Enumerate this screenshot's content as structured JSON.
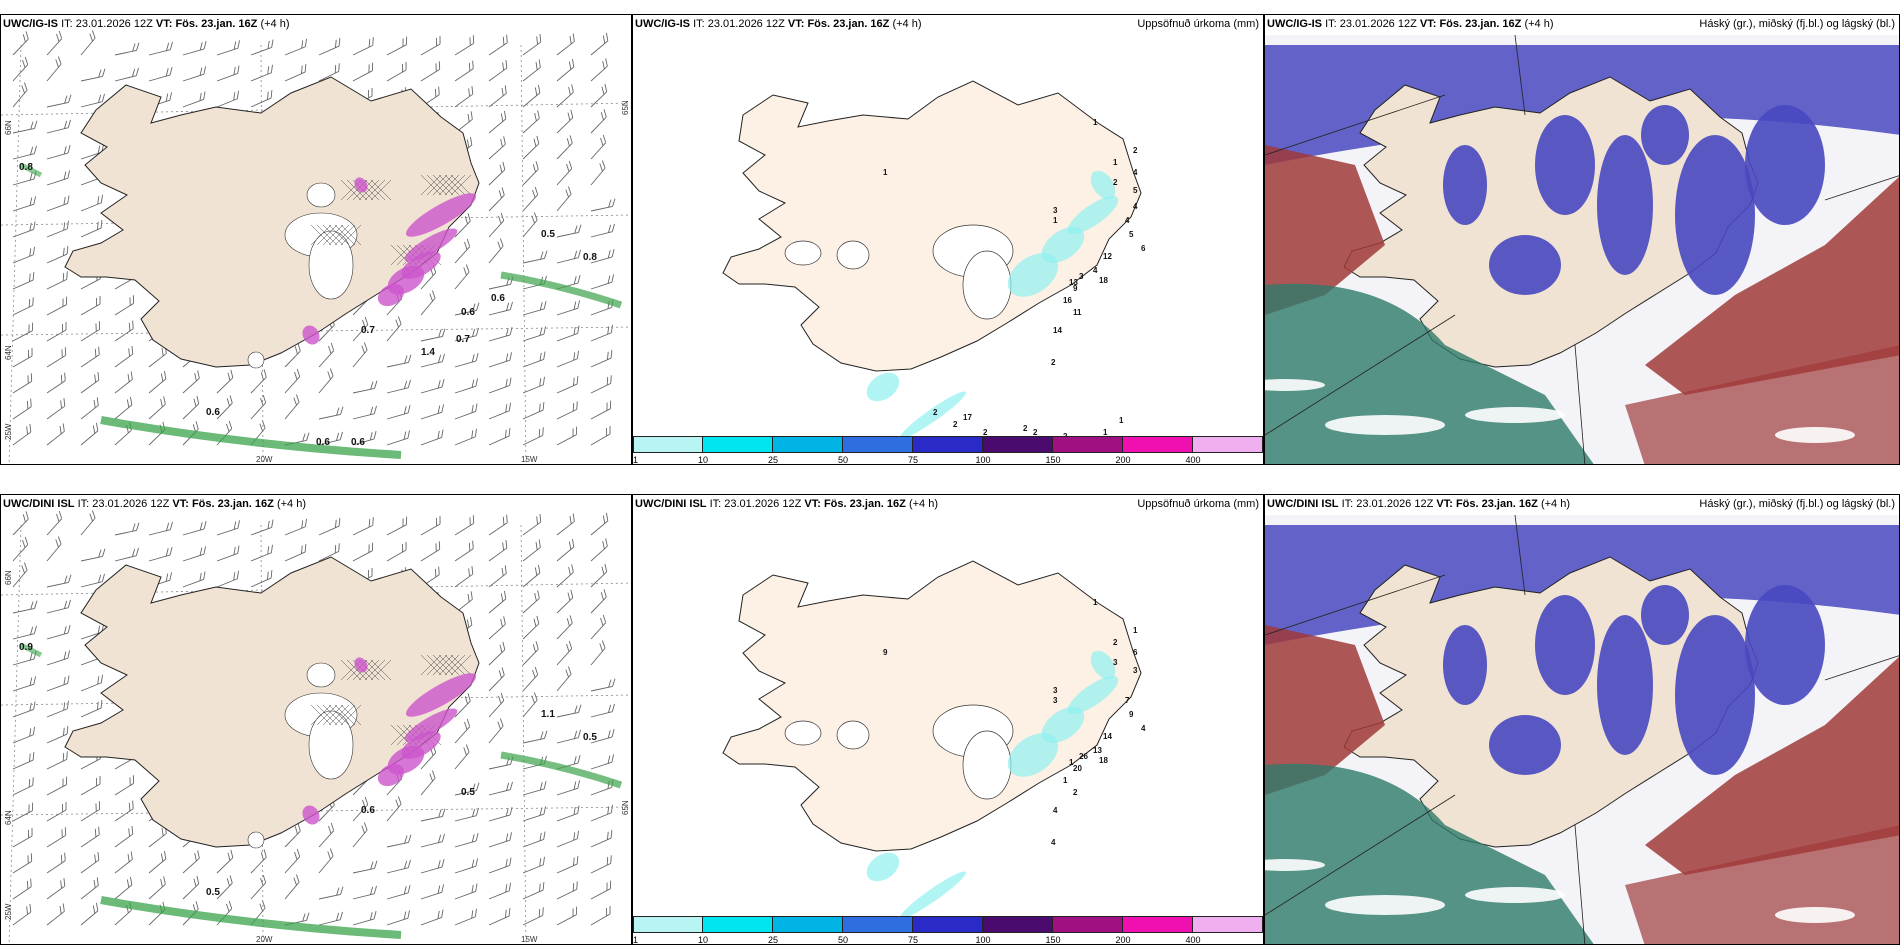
{
  "top_row": {
    "wind_panel": {
      "model": "UWC/IG-IS",
      "it_label": "IT:",
      "it_value": "23.01.2026 12Z",
      "vt_label": "VT:",
      "vt_value": "Fös. 23.jan. 16Z",
      "lead": "(+4 h)",
      "axis_labels": [
        "66N",
        "65N",
        "64N",
        "25W",
        "20W",
        "15W"
      ],
      "contour_values": [
        "0.8",
        "0.6",
        "0.5",
        "0.8",
        "0.7",
        "0.6",
        "0.7",
        "1.4",
        "0.6",
        "0.6",
        "0.6"
      ]
    },
    "precip_panel": {
      "model": "UWC/IG-IS",
      "it_label": "IT:",
      "it_value": "23.01.2026 12Z",
      "vt_label": "VT:",
      "vt_value": "Fös. 23.jan. 16Z",
      "lead": "(+4 h)",
      "right_title": "Uppsöfnuð úrkoma (mm)",
      "station_values": [
        "1",
        "2",
        "1",
        "2",
        "1",
        "4",
        "5",
        "3",
        "4",
        "5",
        "6",
        "1",
        "4",
        "12",
        "18",
        "9",
        "3",
        "13",
        "16",
        "11",
        "14",
        "2",
        "17",
        "2",
        "2",
        "2",
        "2",
        "2",
        "2",
        "1",
        "1",
        "4"
      ]
    },
    "cloud_panel": {
      "model": "UWC/IG-IS",
      "it_label": "IT:",
      "it_value": "23.01.2026 12Z",
      "vt_label": "VT:",
      "vt_value": "Fös. 23.jan. 16Z",
      "lead": "(+4 h)",
      "right_title": "Háský (gr.), miðský (fj.bl.) og lágský (bl.)"
    }
  },
  "bottom_row": {
    "wind_panel": {
      "model": "UWC/DINI ISL",
      "it_label": "IT:",
      "it_value": "23.01.2026 12Z",
      "vt_label": "VT:",
      "vt_value": "Fös. 23.jan. 16Z",
      "lead": "(+4 h)",
      "axis_labels": [
        "66N",
        "65N",
        "64N",
        "25W",
        "20W",
        "15W"
      ],
      "contour_values": [
        "0.9",
        "0.5",
        "1.1",
        "0.5",
        "0.6",
        "0.5"
      ]
    },
    "precip_panel": {
      "model": "UWC/DINI ISL",
      "it_label": "IT:",
      "it_value": "23.01.2026 12Z",
      "vt_label": "VT:",
      "vt_value": "Fös. 23.jan. 16Z",
      "lead": "(+4 h)",
      "right_title": "Uppsöfnuð úrkoma (mm)",
      "station_values": [
        "1",
        "1",
        "2",
        "3",
        "3",
        "6",
        "3",
        "3",
        "7",
        "9",
        "4",
        "9",
        "13",
        "14",
        "18",
        "20",
        "26",
        "1",
        "1",
        "2",
        "4",
        "4"
      ]
    },
    "cloud_panel": {
      "model": "UWC/DINI ISL",
      "it_label": "IT:",
      "it_value": "23.01.2026 12Z",
      "vt_label": "VT:",
      "vt_value": "Fös. 23.jan. 16Z",
      "lead": "(+4 h)",
      "right_title": "Háský (gr.), miðský (fj.bl.) og lágský (bl.)"
    }
  },
  "colorbar": {
    "ticks": [
      "1",
      "10",
      "25",
      "50",
      "75",
      "100",
      "150",
      "200",
      "400"
    ],
    "colors": [
      "#b8f4f4",
      "#00e5f0",
      "#00b4e6",
      "#2e6ee0",
      "#2a2ac8",
      "#4a0a6e",
      "#a01080",
      "#f010b0",
      "#f0b0f0"
    ]
  },
  "palette": {
    "land": "#f1e3d3",
    "land_precip": "#fdf1e6",
    "sea": "#ffffff",
    "cloud_high": "#a03a3a",
    "cloud_mid": "#2e7a6a",
    "cloud_low": "#4848c0"
  }
}
